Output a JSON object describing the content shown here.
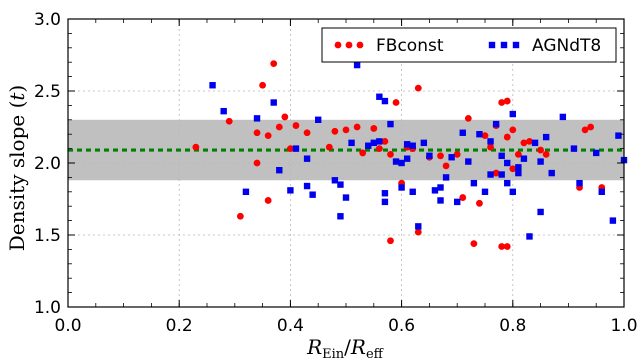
{
  "chart_data": {
    "type": "scatter",
    "ylabel": "Density slope (t)",
    "xlabel": "R_Ein / R_eff",
    "xlim": [
      0.0,
      1.0
    ],
    "ylim": [
      1.0,
      3.0
    ],
    "xticks": [
      "0.0",
      "0.2",
      "0.4",
      "0.6",
      "0.8",
      "1.0"
    ],
    "yticks": [
      "1.0",
      "1.5",
      "2.0",
      "2.5",
      "3.0"
    ],
    "grid": true,
    "legend_position": "top-right",
    "band": {
      "low": 1.88,
      "high": 2.3,
      "color": "#c0c0c0"
    },
    "reference_line": {
      "y": 2.09,
      "color": "#008000",
      "style": "dashed"
    },
    "series": [
      {
        "name": "FBconst",
        "color": "#ff0000",
        "marker": "circle",
        "points": [
          [
            0.23,
            2.11
          ],
          [
            0.29,
            2.29
          ],
          [
            0.31,
            1.63
          ],
          [
            0.34,
            2.0
          ],
          [
            0.34,
            2.21
          ],
          [
            0.35,
            2.54
          ],
          [
            0.36,
            1.74
          ],
          [
            0.36,
            2.19
          ],
          [
            0.37,
            2.69
          ],
          [
            0.38,
            2.25
          ],
          [
            0.39,
            2.32
          ],
          [
            0.4,
            2.1
          ],
          [
            0.41,
            2.26
          ],
          [
            0.43,
            2.21
          ],
          [
            0.47,
            2.11
          ],
          [
            0.48,
            2.22
          ],
          [
            0.5,
            2.23
          ],
          [
            0.52,
            2.25
          ],
          [
            0.53,
            2.07
          ],
          [
            0.55,
            2.24
          ],
          [
            0.56,
            2.1
          ],
          [
            0.57,
            2.15
          ],
          [
            0.58,
            2.06
          ],
          [
            0.58,
            1.46
          ],
          [
            0.59,
            2.42
          ],
          [
            0.6,
            1.86
          ],
          [
            0.61,
            2.11
          ],
          [
            0.62,
            2.1
          ],
          [
            0.63,
            2.52
          ],
          [
            0.63,
            1.52
          ],
          [
            0.65,
            2.04
          ],
          [
            0.67,
            2.05
          ],
          [
            0.68,
            1.98
          ],
          [
            0.7,
            2.06
          ],
          [
            0.71,
            1.76
          ],
          [
            0.72,
            2.31
          ],
          [
            0.73,
            1.44
          ],
          [
            0.74,
            1.72
          ],
          [
            0.75,
            2.19
          ],
          [
            0.76,
            2.11
          ],
          [
            0.77,
            2.26
          ],
          [
            0.77,
            1.93
          ],
          [
            0.78,
            2.42
          ],
          [
            0.78,
            1.42
          ],
          [
            0.79,
            2.43
          ],
          [
            0.79,
            2.18
          ],
          [
            0.79,
            1.42
          ],
          [
            0.8,
            1.96
          ],
          [
            0.8,
            2.23
          ],
          [
            0.81,
            2.06
          ],
          [
            0.82,
            2.14
          ],
          [
            0.83,
            2.15
          ],
          [
            0.85,
            2.09
          ],
          [
            0.86,
            2.06
          ],
          [
            0.93,
            2.23
          ],
          [
            0.94,
            2.25
          ],
          [
            0.92,
            1.83
          ],
          [
            0.96,
            1.83
          ]
        ]
      },
      {
        "name": "AGNdT8",
        "color": "#0000ee",
        "marker": "square",
        "points": [
          [
            0.26,
            2.54
          ],
          [
            0.28,
            2.36
          ],
          [
            0.32,
            1.8
          ],
          [
            0.34,
            2.31
          ],
          [
            0.37,
            2.42
          ],
          [
            0.38,
            1.95
          ],
          [
            0.4,
            1.81
          ],
          [
            0.41,
            2.1
          ],
          [
            0.43,
            1.84
          ],
          [
            0.43,
            2.03
          ],
          [
            0.44,
            1.78
          ],
          [
            0.45,
            2.3
          ],
          [
            0.48,
            1.88
          ],
          [
            0.49,
            1.85
          ],
          [
            0.49,
            1.63
          ],
          [
            0.5,
            1.76
          ],
          [
            0.51,
            2.14
          ],
          [
            0.52,
            2.68
          ],
          [
            0.54,
            2.12
          ],
          [
            0.55,
            2.14
          ],
          [
            0.56,
            2.46
          ],
          [
            0.56,
            2.15
          ],
          [
            0.57,
            2.43
          ],
          [
            0.57,
            1.73
          ],
          [
            0.57,
            1.79
          ],
          [
            0.58,
            2.27
          ],
          [
            0.59,
            2.01
          ],
          [
            0.6,
            1.83
          ],
          [
            0.6,
            2.0
          ],
          [
            0.61,
            2.13
          ],
          [
            0.61,
            2.03
          ],
          [
            0.62,
            2.12
          ],
          [
            0.62,
            1.8
          ],
          [
            0.63,
            1.56
          ],
          [
            0.64,
            2.14
          ],
          [
            0.65,
            2.05
          ],
          [
            0.66,
            1.81
          ],
          [
            0.67,
            1.74
          ],
          [
            0.67,
            1.83
          ],
          [
            0.68,
            1.9
          ],
          [
            0.69,
            2.04
          ],
          [
            0.7,
            1.73
          ],
          [
            0.71,
            2.21
          ],
          [
            0.72,
            2.01
          ],
          [
            0.73,
            1.86
          ],
          [
            0.74,
            2.2
          ],
          [
            0.75,
            1.8
          ],
          [
            0.76,
            2.15
          ],
          [
            0.76,
            1.92
          ],
          [
            0.77,
            2.27
          ],
          [
            0.78,
            2.05
          ],
          [
            0.78,
            1.92
          ],
          [
            0.79,
            1.86
          ],
          [
            0.79,
            2.0
          ],
          [
            0.8,
            2.34
          ],
          [
            0.8,
            1.8
          ],
          [
            0.81,
            1.97
          ],
          [
            0.81,
            1.93
          ],
          [
            0.82,
            2.03
          ],
          [
            0.83,
            1.49
          ],
          [
            0.84,
            2.14
          ],
          [
            0.85,
            2.01
          ],
          [
            0.85,
            1.66
          ],
          [
            0.86,
            2.18
          ],
          [
            0.87,
            1.93
          ],
          [
            0.89,
            2.32
          ],
          [
            0.91,
            2.1
          ],
          [
            0.92,
            1.86
          ],
          [
            0.95,
            2.07
          ],
          [
            0.96,
            1.8
          ],
          [
            0.98,
            1.6
          ],
          [
            0.99,
            2.19
          ],
          [
            1.0,
            2.02
          ]
        ]
      }
    ]
  }
}
